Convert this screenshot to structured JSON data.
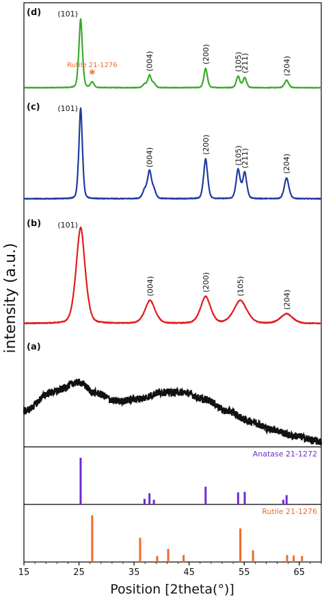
{
  "chart_data": {
    "type": "line",
    "xlabel": "Position [2theta(°)]",
    "ylabel": "intensity (a.u.)",
    "xlim": [
      15,
      69
    ],
    "x_ticks": [
      15,
      25,
      35,
      45,
      55,
      65
    ],
    "x_tick_labels": [
      "15",
      "25",
      "35",
      "45",
      "55",
      "65"
    ],
    "series": [
      {
        "panel_label": "(d)",
        "color": "#3aa82a",
        "peaks": [
          {
            "pos": 25.3,
            "height": 100,
            "width": 0.35,
            "hkl": "(101)"
          },
          {
            "pos": 27.4,
            "height": 8,
            "width": 0.35,
            "hkl": ""
          },
          {
            "pos": 36.9,
            "height": 5,
            "width": 0.35,
            "hkl": ""
          },
          {
            "pos": 37.8,
            "height": 18,
            "width": 0.35,
            "hkl": "(004)"
          },
          {
            "pos": 38.6,
            "height": 6,
            "width": 0.35,
            "hkl": ""
          },
          {
            "pos": 48.0,
            "height": 28,
            "width": 0.35,
            "hkl": "(200)"
          },
          {
            "pos": 53.9,
            "height": 17,
            "width": 0.35,
            "hkl": "(105)"
          },
          {
            "pos": 55.1,
            "height": 15,
            "width": 0.35,
            "hkl": "(211)"
          },
          {
            "pos": 62.7,
            "height": 11,
            "width": 0.4,
            "hkl": "(204)"
          }
        ],
        "annotation": {
          "text": "Rutile 21-1276",
          "marker": "*",
          "pos": 27.4
        }
      },
      {
        "panel_label": "(c)",
        "color": "#1f3aa0",
        "peaks": [
          {
            "pos": 25.3,
            "height": 100,
            "width": 0.35,
            "hkl": "(101)"
          },
          {
            "pos": 36.9,
            "height": 9,
            "width": 0.4,
            "hkl": ""
          },
          {
            "pos": 37.8,
            "height": 30,
            "width": 0.4,
            "hkl": "(004)"
          },
          {
            "pos": 38.6,
            "height": 9,
            "width": 0.4,
            "hkl": ""
          },
          {
            "pos": 48.0,
            "height": 44,
            "width": 0.4,
            "hkl": "(200)"
          },
          {
            "pos": 53.9,
            "height": 32,
            "width": 0.4,
            "hkl": "(105)"
          },
          {
            "pos": 55.1,
            "height": 29,
            "width": 0.4,
            "hkl": "(211)"
          },
          {
            "pos": 62.7,
            "height": 23,
            "width": 0.45,
            "hkl": "(204)"
          }
        ]
      },
      {
        "panel_label": "(b)",
        "color": "#e01b1b",
        "peaks": [
          {
            "pos": 25.3,
            "height": 100,
            "width": 0.9,
            "hkl": "(101)"
          },
          {
            "pos": 37.9,
            "height": 24,
            "width": 1.0,
            "hkl": "(004)"
          },
          {
            "pos": 48.0,
            "height": 28,
            "width": 1.0,
            "hkl": "(200)"
          },
          {
            "pos": 54.3,
            "height": 24,
            "width": 1.3,
            "hkl": "(105)"
          },
          {
            "pos": 62.7,
            "height": 10,
            "width": 1.2,
            "hkl": "(204)"
          }
        ]
      },
      {
        "panel_label": "(a)",
        "color": "#111111",
        "profile": [
          [
            15,
            40
          ],
          [
            20,
            63
          ],
          [
            25,
            75
          ],
          [
            28,
            62
          ],
          [
            32,
            52
          ],
          [
            36,
            55
          ],
          [
            40,
            63
          ],
          [
            44,
            63
          ],
          [
            48,
            54
          ],
          [
            52,
            40
          ],
          [
            56,
            28
          ],
          [
            60,
            18
          ],
          [
            64,
            10
          ],
          [
            69,
            3
          ]
        ]
      }
    ],
    "reference_patterns": [
      {
        "name": "Anatase 21-1272",
        "color": "#6a2ccf",
        "lines": [
          [
            25.3,
            100
          ],
          [
            36.9,
            12
          ],
          [
            37.8,
            24
          ],
          [
            38.6,
            10
          ],
          [
            48.0,
            38
          ],
          [
            53.9,
            26
          ],
          [
            55.1,
            27
          ],
          [
            62.1,
            10
          ],
          [
            62.7,
            20
          ]
        ]
      },
      {
        "name": "Rutile 21-1276",
        "color": "#ee6a2a",
        "lines": [
          [
            27.4,
            100
          ],
          [
            36.1,
            52
          ],
          [
            39.2,
            13
          ],
          [
            41.2,
            28
          ],
          [
            44.0,
            15
          ],
          [
            54.3,
            72
          ],
          [
            56.6,
            25
          ],
          [
            62.8,
            15
          ],
          [
            64.0,
            14
          ],
          [
            65.5,
            13
          ]
        ]
      }
    ]
  }
}
